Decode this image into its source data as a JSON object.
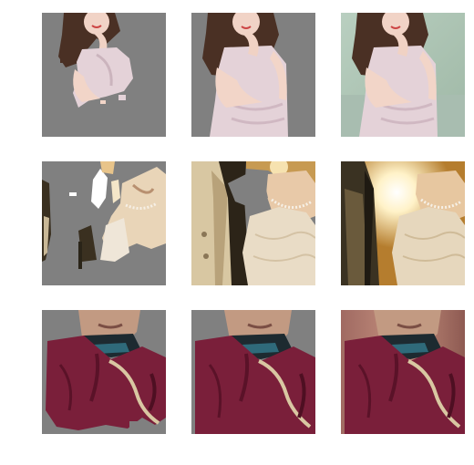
{
  "figure": {
    "layout": {
      "rows": 3,
      "columns": 3
    },
    "colors": {
      "mask_gray": "#808080",
      "background": "#ffffff"
    },
    "rows": [
      {
        "subject": "woman-in-pink-halter-top",
        "panels": [
          "partial-mask-cutout",
          "full-cutout-gray-background",
          "original-photo"
        ]
      },
      {
        "subject": "wedding-couple-backlit",
        "panels": [
          "partial-mask-cutout",
          "full-cutout-gray-background",
          "original-photo"
        ]
      },
      {
        "subject": "elderly-woman-maroon-robe",
        "panels": [
          "partial-mask-cutout",
          "full-cutout-gray-background",
          "original-photo"
        ]
      }
    ]
  }
}
